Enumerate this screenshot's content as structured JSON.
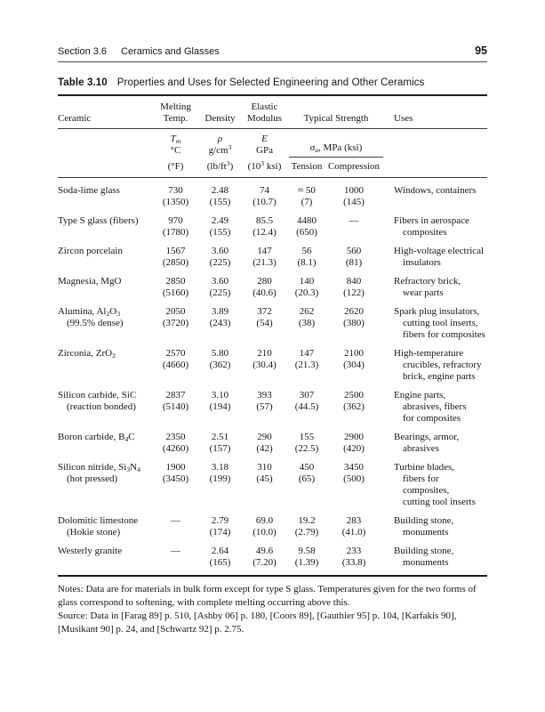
{
  "page": {
    "running_head": {
      "section": "Section 3.6",
      "chapter": "Ceramics and Glasses",
      "page_number": "95"
    }
  },
  "table": {
    "label": "Table 3.10",
    "title": "Properties and Uses for Selected Engineering and Other Ceramics",
    "columns": {
      "ceramic": "Ceramic",
      "melting": [
        "Melting",
        "Temp."
      ],
      "density": "Density",
      "modulus": [
        "Elastic",
        "Modulus"
      ],
      "strength": "Typical Strength",
      "uses": "Uses"
    },
    "units": {
      "melting": [
        "*T*_{*m*}",
        "°C"
      ],
      "melting_alt": "(°F)",
      "density": [
        "*ρ*",
        "g/cm^{3}"
      ],
      "density_alt": "(lb/ft^{3})",
      "modulus": [
        "*E*",
        "GPa"
      ],
      "modulus_alt": "(10^{3} ksi)",
      "strength": "*σ*_{*u*}, MPa (ksi)",
      "tension": "Tension",
      "compression": "Compression"
    },
    "rows": [
      {
        "ceramic": [
          "Soda-lime glass"
        ],
        "melting": [
          "730",
          "(1350)"
        ],
        "density": [
          "2.48",
          "(155)"
        ],
        "modulus": [
          "74",
          "(10.7)"
        ],
        "tension": [
          "≈ 50",
          "(7)"
        ],
        "compression": [
          "1000",
          "(145)"
        ],
        "uses": [
          "Windows, containers"
        ]
      },
      {
        "ceramic": [
          "Type S glass (fibers)"
        ],
        "melting": [
          "970",
          "(1780)"
        ],
        "density": [
          "2.49",
          "(155)"
        ],
        "modulus": [
          "85.5",
          "(12.4)"
        ],
        "tension": [
          "4480",
          "(650)"
        ],
        "compression": [
          "—"
        ],
        "uses": [
          "Fibers in aerospace",
          "composites"
        ]
      },
      {
        "ceramic": [
          "Zircon porcelain"
        ],
        "melting": [
          "1567",
          "(2850)"
        ],
        "density": [
          "3.60",
          "(225)"
        ],
        "modulus": [
          "147",
          "(21.3)"
        ],
        "tension": [
          "56",
          "(8.1)"
        ],
        "compression": [
          "560",
          "(81)"
        ],
        "uses": [
          "High-voltage electrical",
          "insulators"
        ]
      },
      {
        "ceramic": [
          "Magnesia, MgO"
        ],
        "melting": [
          "2850",
          "(5160)"
        ],
        "density": [
          "3.60",
          "(225)"
        ],
        "modulus": [
          "280",
          "(40.6)"
        ],
        "tension": [
          "140",
          "(20.3)"
        ],
        "compression": [
          "840",
          "(122)"
        ],
        "uses": [
          "Refractory brick,",
          "wear parts"
        ]
      },
      {
        "ceramic": [
          "Alumina, Al_{2}O_{3}",
          "(99.5% dense)"
        ],
        "melting": [
          "2050",
          "(3720)"
        ],
        "density": [
          "3.89",
          "(243)"
        ],
        "modulus": [
          "372",
          "(54)"
        ],
        "tension": [
          "262",
          "(38)"
        ],
        "compression": [
          "2620",
          "(380)"
        ],
        "uses": [
          "Spark plug insulators,",
          "cutting tool inserts,",
          "fibers for composites"
        ]
      },
      {
        "ceramic": [
          "Zirconia, ZrO_{2}"
        ],
        "melting": [
          "2570",
          "(4660)"
        ],
        "density": [
          "5.80",
          "(362)"
        ],
        "modulus": [
          "210",
          "(30.4)"
        ],
        "tension": [
          "147",
          "(21.3)"
        ],
        "compression": [
          "2100",
          "(304)"
        ],
        "uses": [
          "High-temperature",
          "crucibles, refractory",
          "brick, engine parts"
        ]
      },
      {
        "ceramic": [
          "Silicon carbide, SiC",
          "(reaction bonded)"
        ],
        "melting": [
          "2837",
          "(5140)"
        ],
        "density": [
          "3.10",
          "(194)"
        ],
        "modulus": [
          "393",
          "(57)"
        ],
        "tension": [
          "307",
          "(44.5)"
        ],
        "compression": [
          "2500",
          "(362)"
        ],
        "uses": [
          "Engine parts,",
          "abrasives, fibers",
          "for composites"
        ]
      },
      {
        "ceramic": [
          "Boron carbide, B_{4}C"
        ],
        "melting": [
          "2350",
          "(4260)"
        ],
        "density": [
          "2.51",
          "(157)"
        ],
        "modulus": [
          "290",
          "(42)"
        ],
        "tension": [
          "155",
          "(22.5)"
        ],
        "compression": [
          "2900",
          "(420)"
        ],
        "uses": [
          "Bearings, armor,",
          "abrasives"
        ]
      },
      {
        "ceramic": [
          "Silicon nitride, Si_{3}N_{4}",
          "(hot pressed)"
        ],
        "melting": [
          "1900",
          "(3450)"
        ],
        "density": [
          "3.18",
          "(199)"
        ],
        "modulus": [
          "310",
          "(45)"
        ],
        "tension": [
          "450",
          "(65)"
        ],
        "compression": [
          "3450",
          "(500)"
        ],
        "uses": [
          "Turbine blades,",
          "fibers for composites,",
          "cutting tool inserts"
        ]
      },
      {
        "ceramic": [
          "Dolomitic limestone",
          "(Hokie stone)"
        ],
        "melting": [
          "—"
        ],
        "density": [
          "2.79",
          "(174)"
        ],
        "modulus": [
          "69.0",
          "(10.0)"
        ],
        "tension": [
          "19.2",
          "(2.79)"
        ],
        "compression": [
          "283",
          "(41.0)"
        ],
        "uses": [
          "Building stone,",
          "monuments"
        ]
      },
      {
        "ceramic": [
          "Westerly granite"
        ],
        "melting": [
          "—"
        ],
        "density": [
          "2.64",
          "(165)"
        ],
        "modulus": [
          "49.6",
          "(7.20)"
        ],
        "tension": [
          "9.58",
          "(1.39)"
        ],
        "compression": [
          "233",
          "(33.8)"
        ],
        "uses": [
          "Building stone,",
          "monuments"
        ]
      }
    ],
    "notes": "Notes: Data are for materials in bulk form except for type S glass. Temperatures given for the two forms of glass correspond to softening, with complete melting occurring above this.",
    "source": "Source: Data in [Farag 89] p. 510, [Ashby 06] p. 180, [Coors 89], [Gauthier 95] p. 104, [Karfakis 90], [Musikant 90] p. 24, and [Schwartz 92] p. 2.75."
  }
}
